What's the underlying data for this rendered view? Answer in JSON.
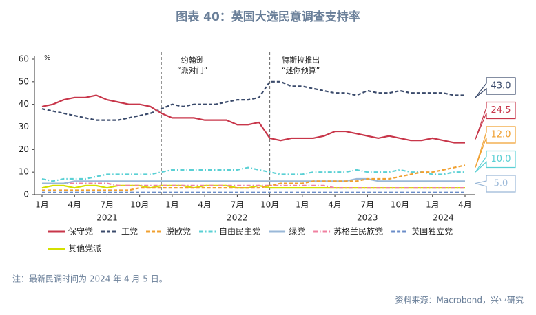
{
  "chart_data": {
    "type": "line",
    "title": "图表 40：英国大选民意调查支持率",
    "y_unit": "%",
    "x": [
      "2021-01",
      "2021-02",
      "2021-03",
      "2021-04",
      "2021-05",
      "2021-06",
      "2021-07",
      "2021-08",
      "2021-09",
      "2021-10",
      "2021-11",
      "2021-12",
      "2022-01",
      "2022-02",
      "2022-03",
      "2022-04",
      "2022-05",
      "2022-06",
      "2022-07",
      "2022-08",
      "2022-09",
      "2022-10",
      "2022-11",
      "2022-12",
      "2023-01",
      "2023-02",
      "2023-03",
      "2023-04",
      "2023-05",
      "2023-06",
      "2023-07",
      "2023-08",
      "2023-09",
      "2023-10",
      "2023-11",
      "2023-12",
      "2024-01",
      "2024-02",
      "2024-03",
      "2024-04"
    ],
    "xlim": [
      "2021-01",
      "2024-04"
    ],
    "xticks": [
      {
        "value": "2021-01",
        "label": "1月"
      },
      {
        "value": "2021-04",
        "label": "4月"
      },
      {
        "value": "2021-07",
        "label": "7月"
      },
      {
        "value": "2021-10",
        "label": "10月"
      },
      {
        "value": "2022-01",
        "label": "1月"
      },
      {
        "value": "2022-04",
        "label": "4月"
      },
      {
        "value": "2022-07",
        "label": "7月"
      },
      {
        "value": "2022-10",
        "label": "10月"
      },
      {
        "value": "2023-01",
        "label": "1月"
      },
      {
        "value": "2023-04",
        "label": "4月"
      },
      {
        "value": "2023-07",
        "label": "7月"
      },
      {
        "value": "2023-10",
        "label": "10月"
      },
      {
        "value": "2024-01",
        "label": "1月"
      },
      {
        "value": "2024-04",
        "label": "4月"
      }
    ],
    "year_labels": [
      {
        "value": "2021-07",
        "label": "2021"
      },
      {
        "value": "2022-07",
        "label": "2022"
      },
      {
        "value": "2023-07",
        "label": "2023"
      },
      {
        "value": "2024-02",
        "label": "2024"
      }
    ],
    "ylim": [
      0,
      60
    ],
    "yticks": [
      0,
      10,
      20,
      30,
      40,
      50,
      60
    ],
    "series": [
      {
        "name": "保守党",
        "color": "#c8364a",
        "dash": "solid",
        "values": [
          39,
          40,
          42,
          43,
          43,
          44,
          42,
          41,
          40,
          40,
          39,
          36,
          34,
          34,
          34,
          33,
          33,
          33,
          31,
          31,
          32,
          25,
          24,
          25,
          25,
          25,
          26,
          28,
          28,
          27,
          26,
          25,
          26,
          25,
          24,
          24,
          25,
          24,
          23,
          23
        ]
      },
      {
        "name": "工党",
        "color": "#3a4a6b",
        "dash": "dash",
        "values": [
          38,
          37,
          36,
          35,
          34,
          33,
          33,
          33,
          34,
          35,
          36,
          38,
          40,
          39,
          40,
          40,
          40,
          41,
          42,
          42,
          43,
          50,
          50,
          48,
          48,
          47,
          46,
          45,
          45,
          44,
          46,
          45,
          45,
          46,
          45,
          45,
          45,
          45,
          44,
          44
        ]
      },
      {
        "name": "脱欧党",
        "color": "#f0a030",
        "dash": "dash",
        "values": [
          2,
          2,
          2,
          2,
          2,
          2,
          2,
          2,
          2,
          3,
          3,
          3,
          3,
          3,
          3,
          3,
          3,
          3,
          3,
          3,
          3,
          4,
          5,
          5,
          5,
          6,
          6,
          6,
          6,
          6,
          7,
          7,
          7,
          8,
          9,
          10,
          10,
          11,
          12,
          13
        ]
      },
      {
        "name": "自由民主党",
        "color": "#5ad0d4",
        "dash": "dashdot",
        "values": [
          7,
          6,
          7,
          7,
          7,
          8,
          9,
          9,
          9,
          9,
          9,
          10,
          11,
          11,
          11,
          11,
          11,
          11,
          11,
          12,
          11,
          10,
          9,
          9,
          9,
          10,
          10,
          10,
          10,
          11,
          10,
          10,
          10,
          11,
          10,
          10,
          9,
          9,
          10,
          10
        ]
      },
      {
        "name": "绿党",
        "color": "#9ab8d8",
        "dash": "solid",
        "values": [
          5,
          5,
          5,
          6,
          6,
          6,
          6,
          6,
          6,
          6,
          6,
          6,
          6,
          6,
          6,
          6,
          6,
          6,
          6,
          6,
          6,
          6,
          6,
          6,
          6,
          6,
          6,
          6,
          6,
          7,
          7,
          6,
          6,
          6,
          6,
          6,
          6,
          6,
          6,
          6
        ]
      },
      {
        "name": "苏格兰民族党",
        "color": "#f080a0",
        "dash": "dashdot",
        "values": [
          5,
          5,
          5,
          5,
          5,
          5,
          5,
          4,
          4,
          4,
          4,
          4,
          4,
          4,
          4,
          4,
          4,
          4,
          4,
          4,
          4,
          4,
          4,
          4,
          4,
          4,
          4,
          3,
          3,
          3,
          3,
          3,
          3,
          3,
          3,
          3,
          3,
          3,
          3,
          3
        ]
      },
      {
        "name": "英国独立党",
        "color": "#6a8cc8",
        "dash": "dash",
        "values": [
          1,
          1,
          1,
          1,
          1,
          1,
          1,
          1,
          1,
          1,
          1,
          1,
          1,
          1,
          1,
          1,
          1,
          1,
          1,
          1,
          1,
          1,
          1,
          1,
          1,
          1,
          1,
          1,
          1,
          1,
          1,
          1,
          1,
          1,
          1,
          1,
          1,
          1,
          1,
          1
        ]
      },
      {
        "name": "其他党派",
        "color": "#d4e000",
        "dash": "solid",
        "values": [
          3,
          4,
          4,
          3,
          4,
          4,
          3,
          4,
          4,
          4,
          3,
          4,
          4,
          4,
          3,
          4,
          4,
          4,
          3,
          3,
          4,
          3,
          3,
          3,
          3,
          3,
          3,
          3,
          3,
          3,
          3,
          3,
          3,
          3,
          3,
          3,
          3,
          3,
          3,
          3
        ]
      }
    ],
    "callouts": [
      {
        "value": 43,
        "label": "43.0",
        "color": "#3a4a6b"
      },
      {
        "value": 24.5,
        "label": "24.5",
        "color": "#c8364a"
      },
      {
        "value": 12,
        "label": "12.0",
        "color": "#f0a030"
      },
      {
        "value": 10,
        "label": "10.0",
        "color": "#5ad0d4"
      },
      {
        "value": 5,
        "label": "5.0",
        "color": "#9ab8d8"
      }
    ],
    "annotations": [
      {
        "x": "2021-12",
        "lines": [
          "约翰逊",
          "“派对门”"
        ]
      },
      {
        "x": "2022-10",
        "lines": [
          "特斯拉推出",
          "“迷你预算”"
        ]
      }
    ],
    "note": "注：最新民调时间为 2024 年 4 月 5 日。",
    "source": "资料来源：Macrobond，兴业研究"
  }
}
